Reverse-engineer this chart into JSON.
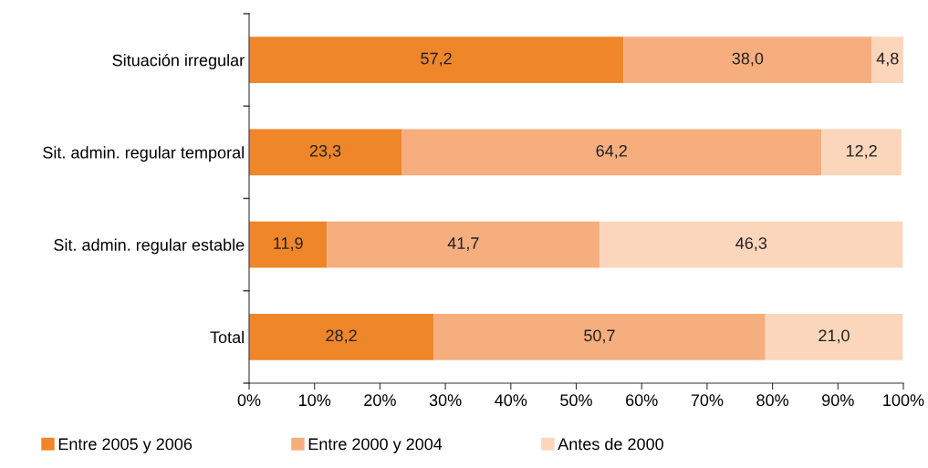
{
  "chart_data": {
    "type": "bar",
    "orientation": "horizontal",
    "stacked": true,
    "categories": [
      "Situación irregular",
      "Sit. admin. regular temporal",
      "Sit. admin. regular estable",
      "Total"
    ],
    "series": [
      {
        "name": "Entre 2005 y 2006",
        "color": "#f0862a",
        "values": [
          57.2,
          23.3,
          11.9,
          28.2
        ],
        "value_labels": [
          "57,2",
          "23,3",
          "11,9",
          "28,2"
        ]
      },
      {
        "name": "Entre 2000 y 2004",
        "color": "#f6ae7e",
        "values": [
          38.0,
          64.2,
          41.7,
          50.7
        ],
        "value_labels": [
          "38,0",
          "64,2",
          "41,7",
          "50,7"
        ]
      },
      {
        "name": "Antes de 2000",
        "color": "#fbd6bb",
        "values": [
          4.8,
          12.2,
          46.3,
          21.0
        ],
        "value_labels": [
          "4,8",
          "12,2",
          "46,3",
          "21,0"
        ]
      }
    ],
    "xlim": [
      0,
      100
    ],
    "xticks": [
      {
        "value": 0,
        "label": "0%"
      },
      {
        "value": 10,
        "label": "10%"
      },
      {
        "value": 20,
        "label": "20%"
      },
      {
        "value": 30,
        "label": "30%"
      },
      {
        "value": 40,
        "label": "40%"
      },
      {
        "value": 50,
        "label": "50%"
      },
      {
        "value": 60,
        "label": "60%"
      },
      {
        "value": 70,
        "label": "70%"
      },
      {
        "value": 80,
        "label": "80%"
      },
      {
        "value": 90,
        "label": "90%"
      },
      {
        "value": 100,
        "label": "100%"
      }
    ],
    "grid": false,
    "legend": "bottom"
  }
}
